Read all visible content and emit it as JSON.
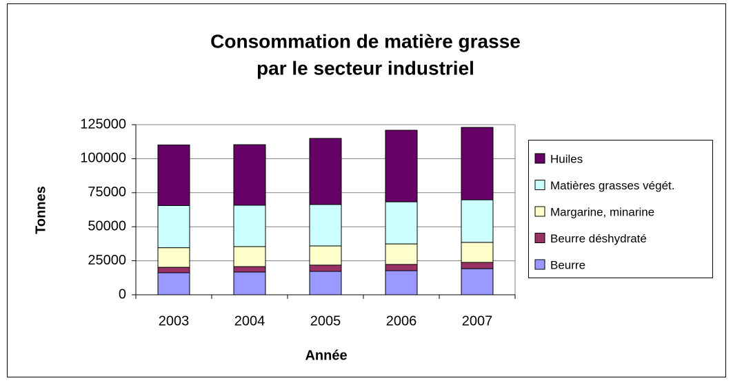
{
  "chart_data": {
    "type": "stacked_bar",
    "title": [
      "Consommation de matière grasse",
      "par le secteur industriel"
    ],
    "x_label": "Année",
    "y_label": "Tonnes",
    "categories": [
      "2003",
      "2004",
      "2005",
      "2006",
      "2007"
    ],
    "series": [
      {
        "name": "Beurre",
        "color": "#9999ff",
        "values": [
          16200,
          16700,
          17200,
          17700,
          19200
        ]
      },
      {
        "name": "Beurre déshydraté",
        "color": "#993366",
        "values": [
          4000,
          4000,
          4600,
          4600,
          4600
        ]
      },
      {
        "name": "Margarine, minarine",
        "color": "#ffffcc",
        "values": [
          14400,
          14700,
          14100,
          15100,
          14700
        ]
      },
      {
        "name": "Matières grasses végét.",
        "color": "#ccffff",
        "values": [
          31000,
          30400,
          30400,
          30900,
          31300
        ]
      },
      {
        "name": "Huiles",
        "color": "#660066",
        "values": [
          44500,
          44500,
          48600,
          52600,
          53200
        ]
      }
    ],
    "ylim": [
      0,
      125000
    ],
    "yticks": [
      0,
      25000,
      50000,
      75000,
      100000,
      125000
    ],
    "grid": true,
    "legend": "right"
  }
}
